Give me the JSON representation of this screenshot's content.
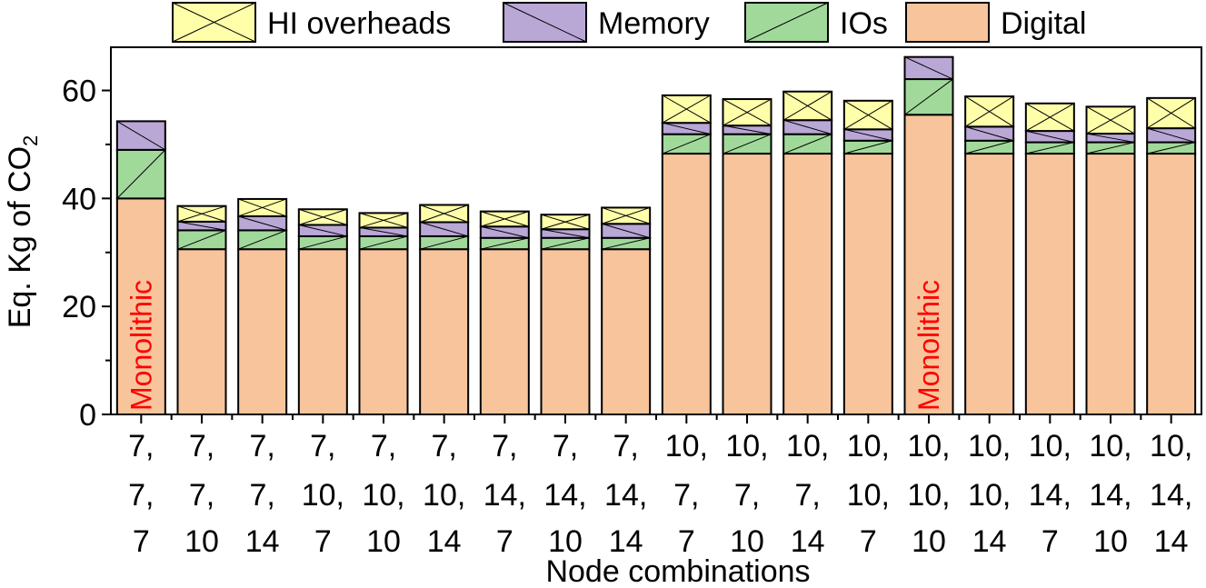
{
  "chart_data": {
    "type": "bar",
    "stacked": true,
    "xlabel": "Node combinations",
    "ylabel_main": "Eq. Kg of CO",
    "ylabel_sub": "2",
    "ylim": [
      0,
      68
    ],
    "yticks": [
      0,
      20,
      40,
      60
    ],
    "legend_position": "top",
    "categories": [
      [
        "7,",
        "7,",
        "7"
      ],
      [
        "7,",
        "7,",
        "10"
      ],
      [
        "7,",
        "7,",
        "14"
      ],
      [
        "7,",
        "10,",
        "7"
      ],
      [
        "7,",
        "10,",
        "10"
      ],
      [
        "7,",
        "10,",
        "14"
      ],
      [
        "7,",
        "14,",
        "7"
      ],
      [
        "7,",
        "14,",
        "10"
      ],
      [
        "7,",
        "14,",
        "14"
      ],
      [
        "10,",
        "7,",
        "7"
      ],
      [
        "10,",
        "7,",
        "10"
      ],
      [
        "10,",
        "7,",
        "14"
      ],
      [
        "10,",
        "10,",
        "7"
      ],
      [
        "10,",
        "10,",
        "10"
      ],
      [
        "10,",
        "10,",
        "14"
      ],
      [
        "10,",
        "14,",
        "7"
      ],
      [
        "10,",
        "14,",
        "10"
      ],
      [
        "10,",
        "14,",
        "14"
      ]
    ],
    "series": [
      {
        "name": "Digital",
        "color": "#F8C49B",
        "pattern": "none",
        "values": [
          40.0,
          30.6,
          30.6,
          30.6,
          30.6,
          30.6,
          30.6,
          30.6,
          30.6,
          48.3,
          48.3,
          48.3,
          48.3,
          55.5,
          48.3,
          48.3,
          48.3,
          48.3
        ]
      },
      {
        "name": "IOs",
        "color": "#A1D99B",
        "pattern": "slash",
        "values": [
          9.0,
          3.5,
          3.5,
          2.4,
          2.4,
          2.4,
          2.1,
          2.1,
          2.1,
          3.6,
          3.6,
          3.6,
          2.4,
          6.6,
          2.4,
          2.1,
          2.1,
          2.1
        ]
      },
      {
        "name": "Memory",
        "color": "#B9A7D6",
        "pattern": "backslash",
        "values": [
          5.3,
          1.6,
          2.6,
          2.1,
          1.6,
          2.6,
          2.1,
          1.6,
          2.6,
          2.1,
          1.6,
          2.6,
          2.1,
          4.1,
          2.6,
          2.1,
          1.6,
          2.6
        ]
      },
      {
        "name": "HI overheads",
        "color": "#FFFFAA",
        "pattern": "cross",
        "values": [
          0.0,
          2.9,
          3.2,
          2.9,
          2.7,
          3.2,
          2.8,
          2.7,
          3.0,
          5.1,
          4.9,
          5.3,
          5.3,
          0.0,
          5.6,
          5.1,
          5.0,
          5.6
        ]
      }
    ],
    "legend_order": [
      "HI overheads",
      "Memory",
      "IOs",
      "Digital"
    ],
    "annotations": [
      {
        "bar_index": 0,
        "text": "Monolithic",
        "color": "#FF0000"
      },
      {
        "bar_index": 13,
        "text": "Monolithic",
        "color": "#FF0000"
      }
    ]
  }
}
